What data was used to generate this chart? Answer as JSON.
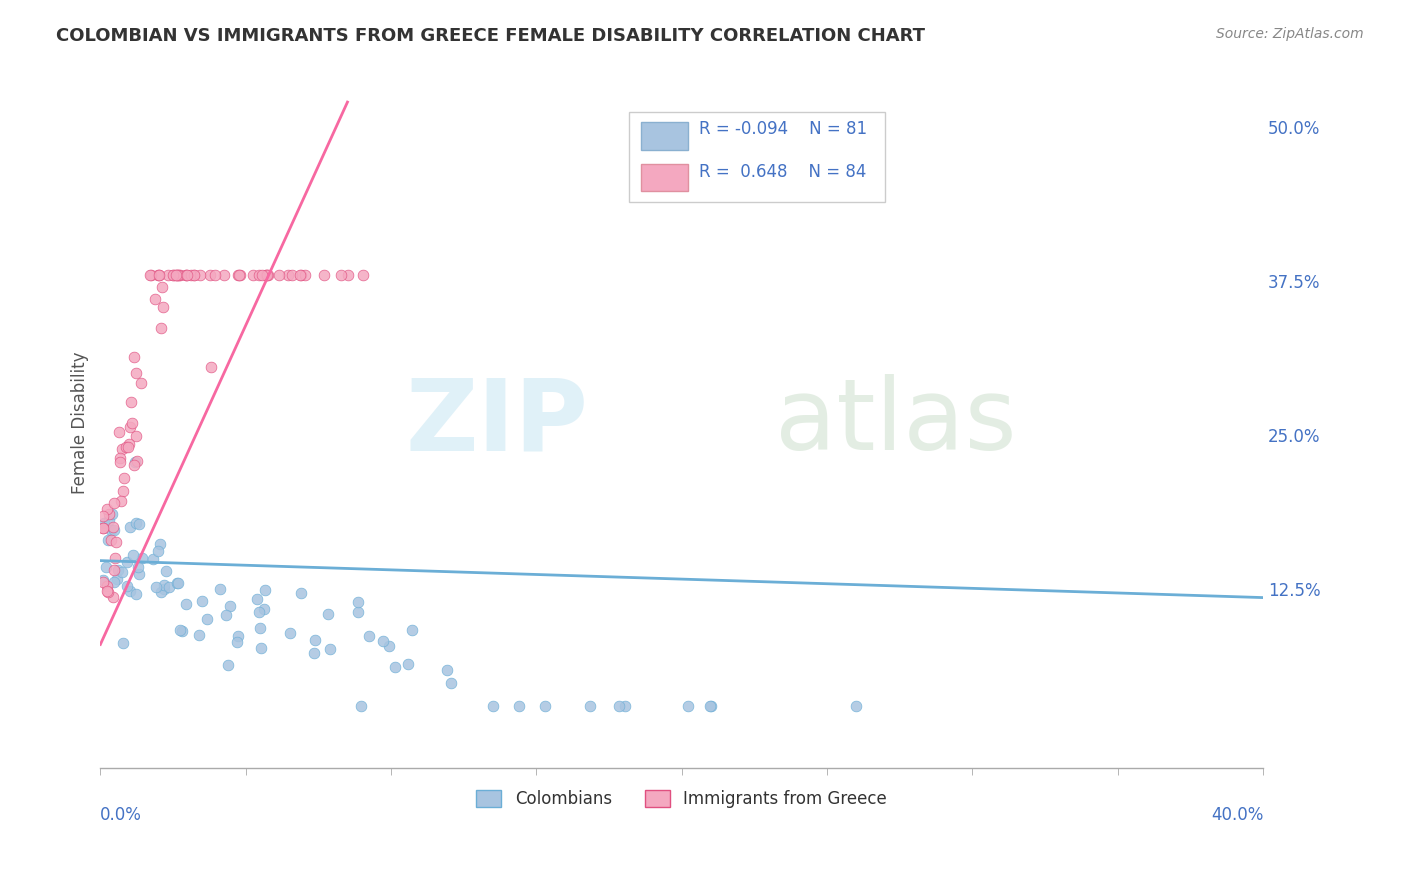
{
  "title": "COLOMBIAN VS IMMIGRANTS FROM GREECE FEMALE DISABILITY CORRELATION CHART",
  "source": "Source: ZipAtlas.com",
  "ylabel": "Female Disability",
  "yaxis_ticks": [
    0.0,
    0.125,
    0.25,
    0.375,
    0.5
  ],
  "yaxis_labels": [
    "",
    "12.5%",
    "25.0%",
    "37.5%",
    "50.0%"
  ],
  "xmin": 0.0,
  "xmax": 0.4,
  "ymin": -0.02,
  "ymax": 0.54,
  "colombians_R": -0.094,
  "colombians_N": 81,
  "greece_R": 0.648,
  "greece_N": 84,
  "color_colombians": "#a8c4e0",
  "color_greece": "#f4a8c0",
  "color_trend_colombians": "#6baed6",
  "color_trend_greece": "#f768a1",
  "background_color": "#ffffff",
  "grid_color": "#cccccc"
}
